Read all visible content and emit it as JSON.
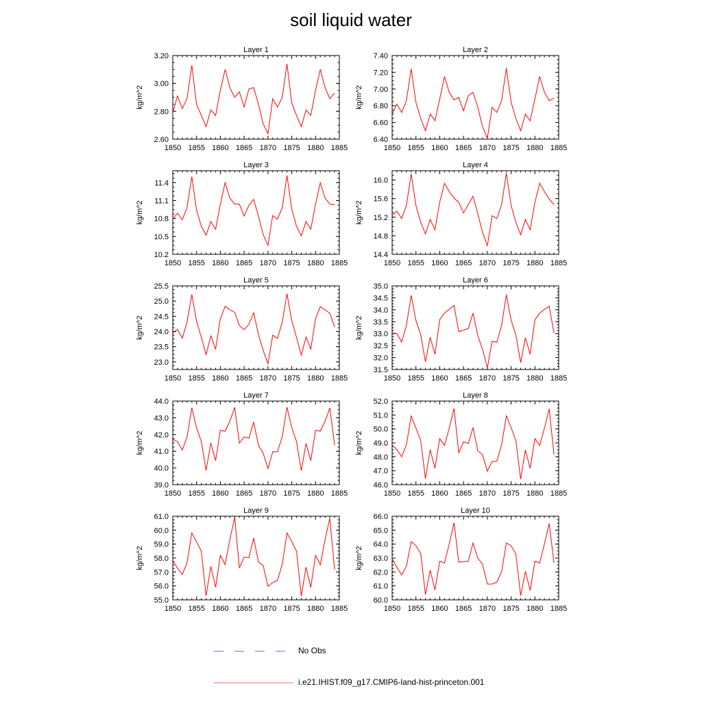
{
  "title": "soil liquid water",
  "legend": [
    {
      "label": "No Obs",
      "color": "#5a6ee0",
      "dash": true
    },
    {
      "label": "i.e21.IHIST.f09_g17.CMIP6-land-hist-princeton.001",
      "color": "#ff6666",
      "dash": false
    }
  ],
  "series_color": "#ff0000",
  "chart_data": [
    {
      "type": "line",
      "title": "Layer 1",
      "xlabel": "",
      "ylabel": "kg/m^2",
      "xlim": [
        1850,
        1885
      ],
      "ylim": [
        2.6,
        3.2
      ],
      "xticks": [
        "1850",
        "1855",
        "1860",
        "1865",
        "1870",
        "1875",
        "1880",
        "1885"
      ],
      "yticks": [
        "2.60",
        "2.80",
        "3.00",
        "3.20"
      ],
      "x": [
        1850,
        1851,
        1852,
        1853,
        1854,
        1855,
        1856,
        1857,
        1858,
        1859,
        1860,
        1861,
        1862,
        1863,
        1864,
        1865,
        1866,
        1867,
        1868,
        1869,
        1870,
        1871,
        1872,
        1873,
        1874,
        1875,
        1876,
        1877,
        1878,
        1879,
        1880,
        1881,
        1882,
        1883,
        1884
      ],
      "values": [
        2.79,
        2.91,
        2.82,
        2.89,
        3.13,
        2.85,
        2.77,
        2.69,
        2.81,
        2.77,
        2.95,
        3.1,
        2.97,
        2.9,
        2.94,
        2.83,
        2.96,
        2.97,
        2.85,
        2.71,
        2.64,
        2.89,
        2.83,
        2.9,
        3.14,
        2.86,
        2.77,
        2.69,
        2.81,
        2.77,
        2.95,
        3.1,
        2.97,
        2.89,
        2.93
      ]
    },
    {
      "type": "line",
      "title": "Layer 2",
      "xlabel": "",
      "ylabel": "kg/m^2",
      "xlim": [
        1850,
        1885
      ],
      "ylim": [
        6.4,
        7.4
      ],
      "xticks": [
        "1850",
        "1855",
        "1860",
        "1865",
        "1870",
        "1875",
        "1880",
        "1885"
      ],
      "yticks": [
        "6.40",
        "6.60",
        "6.80",
        "7.00",
        "7.20",
        "7.40"
      ],
      "x": [
        1850,
        1851,
        1852,
        1853,
        1854,
        1855,
        1856,
        1857,
        1858,
        1859,
        1860,
        1861,
        1862,
        1863,
        1864,
        1865,
        1866,
        1867,
        1868,
        1869,
        1870,
        1871,
        1872,
        1873,
        1874,
        1875,
        1876,
        1877,
        1878,
        1879,
        1880,
        1881,
        1882,
        1883,
        1884
      ],
      "values": [
        6.7,
        6.82,
        6.72,
        6.86,
        7.24,
        6.84,
        6.65,
        6.5,
        6.7,
        6.62,
        6.88,
        7.15,
        6.96,
        6.87,
        6.9,
        6.74,
        6.92,
        6.96,
        6.78,
        6.55,
        6.41,
        6.78,
        6.72,
        6.86,
        7.25,
        6.84,
        6.65,
        6.5,
        6.7,
        6.62,
        6.88,
        7.15,
        6.96,
        6.86,
        6.89
      ]
    },
    {
      "type": "line",
      "title": "Layer 3",
      "xlabel": "",
      "ylabel": "kg/m^2",
      "xlim": [
        1850,
        1885
      ],
      "ylim": [
        10.2,
        11.6
      ],
      "xticks": [
        "1850",
        "1855",
        "1860",
        "1865",
        "1870",
        "1875",
        "1880",
        "1885"
      ],
      "yticks": [
        "10.2",
        "10.5",
        "10.8",
        "11.1",
        "11.4"
      ],
      "x": [
        1850,
        1851,
        1852,
        1853,
        1854,
        1855,
        1856,
        1857,
        1858,
        1859,
        1860,
        1861,
        1862,
        1863,
        1864,
        1865,
        1866,
        1867,
        1868,
        1869,
        1870,
        1871,
        1872,
        1873,
        1874,
        1875,
        1876,
        1877,
        1878,
        1879,
        1880,
        1881,
        1882,
        1883,
        1884
      ],
      "values": [
        10.79,
        10.89,
        10.78,
        10.98,
        11.5,
        10.94,
        10.67,
        10.52,
        10.75,
        10.62,
        11.04,
        11.4,
        11.14,
        11.04,
        11.04,
        10.84,
        11.02,
        11.12,
        10.84,
        10.53,
        10.35,
        10.85,
        10.79,
        10.98,
        11.52,
        10.96,
        10.67,
        10.51,
        10.75,
        10.62,
        11.04,
        11.4,
        11.14,
        11.04,
        11.03
      ]
    },
    {
      "type": "line",
      "title": "Layer 4",
      "xlabel": "",
      "ylabel": "kg/m^2",
      "xlim": [
        1850,
        1885
      ],
      "ylim": [
        14.4,
        16.2
      ],
      "xticks": [
        "1850",
        "1855",
        "1860",
        "1865",
        "1870",
        "1875",
        "1880",
        "1885"
      ],
      "yticks": [
        "14.4",
        "14.8",
        "15.2",
        "15.6",
        "16.0"
      ],
      "x": [
        1850,
        1851,
        1852,
        1853,
        1854,
        1855,
        1856,
        1857,
        1858,
        1859,
        1860,
        1861,
        1862,
        1863,
        1864,
        1865,
        1866,
        1867,
        1868,
        1869,
        1870,
        1871,
        1872,
        1873,
        1874,
        1875,
        1876,
        1877,
        1878,
        1879,
        1880,
        1881,
        1882,
        1883,
        1884
      ],
      "values": [
        15.24,
        15.33,
        15.17,
        15.45,
        16.13,
        15.45,
        15.09,
        14.84,
        15.15,
        14.93,
        15.52,
        15.93,
        15.75,
        15.61,
        15.52,
        15.29,
        15.47,
        15.65,
        15.27,
        14.87,
        14.58,
        15.23,
        15.17,
        15.47,
        16.15,
        15.45,
        15.09,
        14.82,
        15.15,
        14.93,
        15.52,
        15.93,
        15.75,
        15.59,
        15.47
      ]
    },
    {
      "type": "line",
      "title": "Layer 5",
      "xlabel": "",
      "ylabel": "kg/m^2",
      "xlim": [
        1850,
        1885
      ],
      "ylim": [
        22.75,
        25.5
      ],
      "xticks": [
        "1850",
        "1855",
        "1860",
        "1865",
        "1870",
        "1875",
        "1880",
        "1885"
      ],
      "yticks": [
        "23.0",
        "23.5",
        "24.0",
        "24.5",
        "25.0",
        "25.5"
      ],
      "x": [
        1850,
        1851,
        1852,
        1853,
        1854,
        1855,
        1856,
        1857,
        1858,
        1859,
        1860,
        1861,
        1862,
        1863,
        1864,
        1865,
        1866,
        1867,
        1868,
        1869,
        1870,
        1871,
        1872,
        1873,
        1874,
        1875,
        1876,
        1877,
        1878,
        1879,
        1880,
        1881,
        1882,
        1883,
        1884
      ],
      "values": [
        23.95,
        24.07,
        23.78,
        24.3,
        25.22,
        24.34,
        23.81,
        23.24,
        23.86,
        23.42,
        24.42,
        24.83,
        24.71,
        24.63,
        24.2,
        24.06,
        24.24,
        24.62,
        23.9,
        23.38,
        22.94,
        23.88,
        23.77,
        24.3,
        25.24,
        24.35,
        23.81,
        23.22,
        23.82,
        23.42,
        24.42,
        24.82,
        24.71,
        24.6,
        24.15
      ]
    },
    {
      "type": "line",
      "title": "Layer 6",
      "xlabel": "",
      "ylabel": "kg/m^2",
      "xlim": [
        1850,
        1885
      ],
      "ylim": [
        31.5,
        35.0
      ],
      "xticks": [
        "1850",
        "1855",
        "1860",
        "1865",
        "1870",
        "1875",
        "1880",
        "1885"
      ],
      "yticks": [
        "31.5",
        "32.0",
        "32.5",
        "33.0",
        "33.5",
        "34.0",
        "34.5",
        "35.0"
      ],
      "x": [
        1850,
        1851,
        1852,
        1853,
        1854,
        1855,
        1856,
        1857,
        1858,
        1859,
        1860,
        1861,
        1862,
        1863,
        1864,
        1865,
        1866,
        1867,
        1868,
        1869,
        1870,
        1871,
        1872,
        1873,
        1874,
        1875,
        1876,
        1877,
        1878,
        1879,
        1880,
        1881,
        1882,
        1883,
        1884
      ],
      "values": [
        33.02,
        33.01,
        32.65,
        33.34,
        34.6,
        33.56,
        32.95,
        31.82,
        32.85,
        32.14,
        33.58,
        33.86,
        34.02,
        34.18,
        33.08,
        33.15,
        33.21,
        33.86,
        32.92,
        32.34,
        31.57,
        32.68,
        32.64,
        33.35,
        34.63,
        33.56,
        32.95,
        31.79,
        32.83,
        32.14,
        33.58,
        33.86,
        34.02,
        34.15,
        33.02
      ]
    },
    {
      "type": "line",
      "title": "Layer 7",
      "xlabel": "",
      "ylabel": "kg/m^2",
      "xlim": [
        1850,
        1885
      ],
      "ylim": [
        39.0,
        44.0
      ],
      "xticks": [
        "1850",
        "1855",
        "1860",
        "1865",
        "1870",
        "1875",
        "1880",
        "1885"
      ],
      "yticks": [
        "39.0",
        "40.0",
        "41.0",
        "42.0",
        "43.0",
        "44.0"
      ],
      "x": [
        1850,
        1851,
        1852,
        1853,
        1854,
        1855,
        1856,
        1857,
        1858,
        1859,
        1860,
        1861,
        1862,
        1863,
        1864,
        1865,
        1866,
        1867,
        1868,
        1869,
        1870,
        1871,
        1872,
        1873,
        1874,
        1875,
        1876,
        1877,
        1878,
        1879,
        1880,
        1881,
        1882,
        1883,
        1884
      ],
      "values": [
        41.72,
        41.56,
        41.07,
        41.85,
        43.6,
        42.4,
        41.58,
        39.85,
        41.49,
        40.44,
        42.25,
        42.2,
        42.8,
        43.62,
        41.48,
        41.86,
        41.78,
        42.74,
        41.36,
        40.88,
        39.96,
        40.97,
        40.97,
        41.87,
        43.63,
        42.42,
        41.58,
        39.83,
        41.47,
        40.44,
        42.25,
        42.2,
        42.8,
        43.58,
        41.36
      ]
    },
    {
      "type": "line",
      "title": "Layer 8",
      "xlabel": "",
      "ylabel": "kg/m^2",
      "xlim": [
        1850,
        1885
      ],
      "ylim": [
        46.0,
        52.0
      ],
      "xticks": [
        "1850",
        "1855",
        "1860",
        "1865",
        "1870",
        "1875",
        "1880",
        "1885"
      ],
      "yticks": [
        "46.0",
        "47.0",
        "48.0",
        "49.0",
        "50.0",
        "51.0",
        "52.0"
      ],
      "x": [
        1850,
        1851,
        1852,
        1853,
        1854,
        1855,
        1856,
        1857,
        1858,
        1859,
        1860,
        1861,
        1862,
        1863,
        1864,
        1865,
        1866,
        1867,
        1868,
        1869,
        1870,
        1871,
        1872,
        1873,
        1874,
        1875,
        1876,
        1877,
        1878,
        1879,
        1880,
        1881,
        1882,
        1883,
        1884
      ],
      "values": [
        48.85,
        48.52,
        48.0,
        48.86,
        50.93,
        50.06,
        49.17,
        46.43,
        48.52,
        47.18,
        49.3,
        48.82,
        50.06,
        51.47,
        48.27,
        49.08,
        48.95,
        50.1,
        48.43,
        48.15,
        46.96,
        47.66,
        47.68,
        48.86,
        50.94,
        50.08,
        49.17,
        46.4,
        48.5,
        47.18,
        49.3,
        48.82,
        50.06,
        51.44,
        48.17
      ]
    },
    {
      "type": "line",
      "title": "Layer 9",
      "xlabel": "",
      "ylabel": "kg/m^2",
      "xlim": [
        1850,
        1885
      ],
      "ylim": [
        55.0,
        61.0
      ],
      "xticks": [
        "1850",
        "1855",
        "1860",
        "1865",
        "1870",
        "1875",
        "1880",
        "1885"
      ],
      "yticks": [
        "55.0",
        "56.0",
        "57.0",
        "58.0",
        "59.0",
        "60.0",
        "61.0"
      ],
      "x": [
        1850,
        1851,
        1852,
        1853,
        1854,
        1855,
        1856,
        1857,
        1858,
        1859,
        1860,
        1861,
        1862,
        1863,
        1864,
        1865,
        1866,
        1867,
        1868,
        1869,
        1870,
        1871,
        1872,
        1873,
        1874,
        1875,
        1876,
        1877,
        1878,
        1879,
        1880,
        1881,
        1882,
        1883,
        1884
      ],
      "values": [
        57.82,
        57.27,
        56.82,
        57.65,
        59.8,
        59.17,
        58.49,
        55.29,
        57.4,
        55.9,
        58.19,
        57.53,
        59.33,
        60.92,
        57.29,
        58.07,
        58.02,
        59.43,
        57.72,
        57.46,
        55.97,
        56.24,
        56.39,
        57.54,
        59.8,
        59.18,
        58.49,
        55.27,
        57.35,
        55.9,
        58.19,
        57.53,
        59.33,
        60.85,
        57.16
      ]
    },
    {
      "type": "line",
      "title": "Layer 10",
      "xlabel": "",
      "ylabel": "kg/m^2",
      "xlim": [
        1850,
        1885
      ],
      "ylim": [
        60.0,
        66.0
      ],
      "xticks": [
        "1850",
        "1855",
        "1860",
        "1865",
        "1870",
        "1875",
        "1880",
        "1885"
      ],
      "yticks": [
        "60.0",
        "61.0",
        "62.0",
        "63.0",
        "64.0",
        "65.0",
        "66.0"
      ],
      "x": [
        1850,
        1851,
        1852,
        1853,
        1854,
        1855,
        1856,
        1857,
        1858,
        1859,
        1860,
        1861,
        1862,
        1863,
        1864,
        1865,
        1866,
        1867,
        1868,
        1869,
        1870,
        1871,
        1872,
        1873,
        1874,
        1875,
        1876,
        1877,
        1878,
        1879,
        1880,
        1881,
        1882,
        1883,
        1884
      ],
      "values": [
        62.97,
        62.33,
        61.78,
        62.42,
        64.17,
        63.89,
        63.33,
        60.38,
        62.13,
        60.72,
        62.78,
        62.64,
        64.03,
        65.53,
        62.71,
        62.74,
        62.76,
        64.08,
        63.0,
        62.55,
        61.13,
        61.13,
        61.27,
        62.02,
        64.08,
        63.88,
        63.29,
        60.3,
        62.05,
        60.68,
        62.78,
        62.64,
        64.03,
        65.48,
        62.65
      ]
    }
  ]
}
